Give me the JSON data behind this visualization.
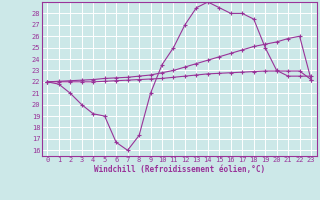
{
  "xlabel": "Windchill (Refroidissement éolien,°C)",
  "bg_color": "#cce8e8",
  "grid_color": "#ffffff",
  "line_color": "#993399",
  "xlim": [
    -0.5,
    23.5
  ],
  "ylim": [
    15.5,
    29.0
  ],
  "xticks": [
    0,
    1,
    2,
    3,
    4,
    5,
    6,
    7,
    8,
    9,
    10,
    11,
    12,
    13,
    14,
    15,
    16,
    17,
    18,
    19,
    20,
    21,
    22,
    23
  ],
  "yticks": [
    16,
    17,
    18,
    19,
    20,
    21,
    22,
    23,
    24,
    25,
    26,
    27,
    28
  ],
  "curve1_x": [
    0,
    1,
    2,
    3,
    4,
    5,
    6,
    7,
    8,
    9,
    10,
    11,
    12,
    13,
    14,
    15,
    16,
    17,
    18,
    19,
    20,
    21,
    22,
    23
  ],
  "curve1_y": [
    22.0,
    21.8,
    21.0,
    20.0,
    19.2,
    19.0,
    16.7,
    16.0,
    17.3,
    21.0,
    23.5,
    25.0,
    27.0,
    28.5,
    29.0,
    28.5,
    28.0,
    28.0,
    27.5,
    25.0,
    23.0,
    22.5,
    22.5,
    22.5
  ],
  "curve2_x": [
    0,
    1,
    2,
    3,
    4,
    5,
    6,
    7,
    8,
    9,
    10,
    11,
    12,
    13,
    14,
    15,
    16,
    17,
    18,
    19,
    20,
    21,
    22,
    23
  ],
  "curve2_y": [
    22.0,
    22.05,
    22.1,
    22.15,
    22.2,
    22.3,
    22.35,
    22.4,
    22.5,
    22.6,
    22.8,
    23.0,
    23.3,
    23.6,
    23.9,
    24.2,
    24.5,
    24.8,
    25.1,
    25.3,
    25.5,
    25.8,
    26.0,
    22.2
  ],
  "curve3_x": [
    0,
    1,
    2,
    3,
    4,
    5,
    6,
    7,
    8,
    9,
    10,
    11,
    12,
    13,
    14,
    15,
    16,
    17,
    18,
    19,
    20,
    21,
    22,
    23
  ],
  "curve3_y": [
    22.0,
    22.0,
    22.0,
    22.0,
    22.0,
    22.05,
    22.1,
    22.15,
    22.2,
    22.25,
    22.3,
    22.4,
    22.5,
    22.6,
    22.7,
    22.75,
    22.8,
    22.85,
    22.9,
    22.95,
    22.95,
    22.95,
    22.95,
    22.2
  ]
}
